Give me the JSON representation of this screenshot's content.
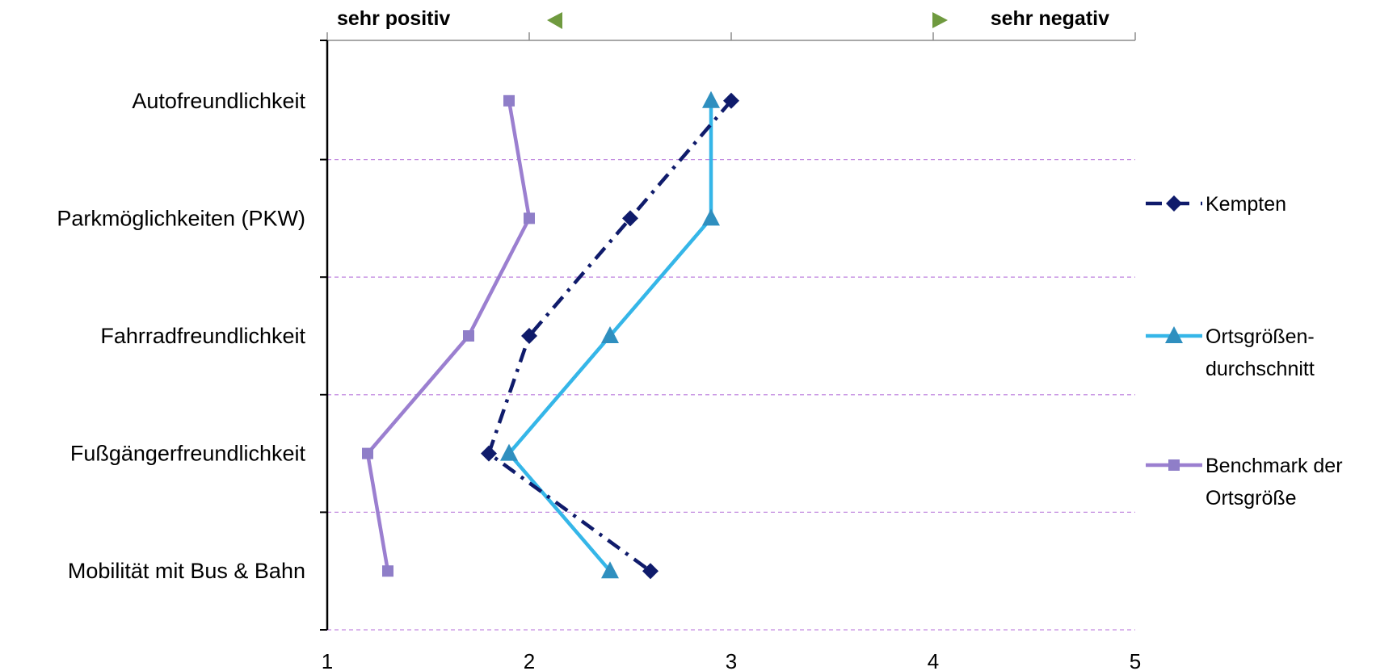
{
  "chart_data": {
    "type": "line",
    "orientation": "horizontal-values",
    "categories": [
      "Autofreundlichkeit",
      "Parkmöglichkeiten (PKW)",
      "Fahrradfreundlichkeit",
      "Fußgängerfreundlichkeit",
      "Mobilität mit Bus & Bahn"
    ],
    "xlim": [
      1,
      5
    ],
    "x_ticks": [
      "1",
      "2",
      "3",
      "4",
      "5"
    ],
    "top_labels": {
      "left": "sehr positiv",
      "right": "sehr negativ"
    },
    "grid": "horizontal dashed between categories",
    "legend_position": "right",
    "series": [
      {
        "name": "Kempten",
        "values": [
          3.0,
          2.5,
          2.0,
          1.8,
          2.6
        ],
        "color": "#0f1b6b",
        "marker": "diamond",
        "line_style": "dash-dot"
      },
      {
        "name": "Ortsgrößen-durchschnitt",
        "legend_lines": [
          "Ortsgrößen-",
          "durchschnitt"
        ],
        "values": [
          2.9,
          2.9,
          2.4,
          1.9,
          2.4
        ],
        "color": "#35b6e8",
        "marker_color": "#2f8fbf",
        "marker": "triangle",
        "line_style": "solid"
      },
      {
        "name": "Benchmark der Ortsgröße",
        "legend_lines": [
          "Benchmark der",
          "Ortsgröße"
        ],
        "values": [
          1.9,
          2.0,
          1.7,
          1.2,
          1.3
        ],
        "color": "#9b7fd0",
        "marker_color": "#8f7ec8",
        "marker": "square",
        "line_style": "solid"
      }
    ],
    "colors": {
      "axis": "#000000",
      "top_axis": "#8c8c8c",
      "grid": "#c38be0",
      "arrow_fill": "#6f9a3f"
    }
  }
}
